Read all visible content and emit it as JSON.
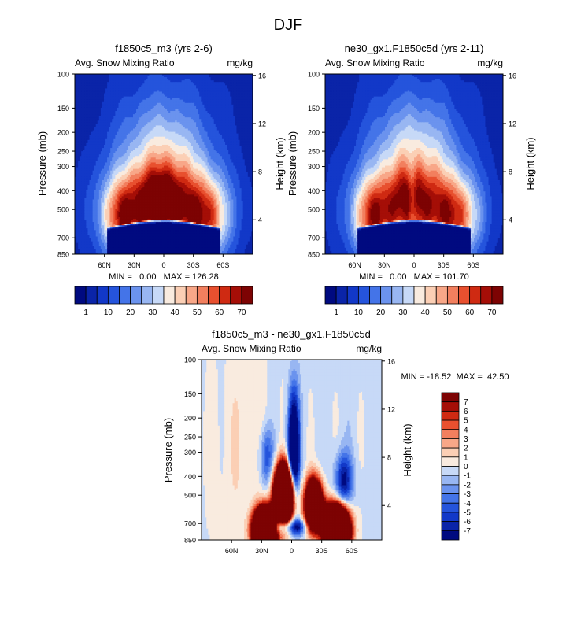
{
  "page_title": "DJF",
  "chart_data": [
    {
      "type": "heatmap",
      "title": "f1850c5_m3 (yrs 2-6)",
      "subtitle_left": "Avg. Snow Mixing Ratio",
      "subtitle_right": "mg/kg",
      "ylabel": "Pressure (mb)",
      "ylabel_right": "Height (km)",
      "xlim": [
        90,
        -90
      ],
      "x_tick_values": [
        60,
        30,
        0,
        -30,
        -60
      ],
      "x_tick_labels": [
        "60N",
        "30N",
        "0",
        "30S",
        "60S"
      ],
      "ylim": [
        850,
        100
      ],
      "y_tick_values": [
        100,
        150,
        200,
        250,
        300,
        400,
        500,
        700,
        850
      ],
      "y_tick_labels": [
        "100",
        "150",
        "200",
        "250",
        "300",
        "400",
        "500",
        "700",
        "850"
      ],
      "height_tick_values": [
        4,
        8,
        12,
        16
      ],
      "height_tick_labels": [
        "4",
        "8",
        "12",
        "16"
      ],
      "stats_text": "MIN =   0.00   MAX = 126.28",
      "colorbar": {
        "orientation": "horizontal",
        "levels": [
          1,
          5,
          10,
          15,
          20,
          25,
          30,
          35,
          40,
          45,
          50,
          55,
          60,
          65,
          70
        ],
        "label_values": [
          1,
          10,
          20,
          30,
          40,
          50,
          60,
          70
        ],
        "labels": [
          "1",
          "10",
          "20",
          "30",
          "40",
          "50",
          "60",
          "70"
        ]
      },
      "field": "snow_a"
    },
    {
      "type": "heatmap",
      "title": "ne30_gx1.F1850c5d (yrs 2-11)",
      "subtitle_left": "Avg. Snow Mixing Ratio",
      "subtitle_right": "mg/kg",
      "ylabel": "Pressure (mb)",
      "ylabel_right": "Height (km)",
      "xlim": [
        90,
        -90
      ],
      "x_tick_values": [
        60,
        30,
        0,
        -30,
        -60
      ],
      "x_tick_labels": [
        "60N",
        "30N",
        "0",
        "30S",
        "60S"
      ],
      "ylim": [
        850,
        100
      ],
      "y_tick_values": [
        100,
        150,
        200,
        250,
        300,
        400,
        500,
        700,
        850
      ],
      "y_tick_labels": [
        "100",
        "150",
        "200",
        "250",
        "300",
        "400",
        "500",
        "700",
        "850"
      ],
      "height_tick_values": [
        4,
        8,
        12,
        16
      ],
      "height_tick_labels": [
        "4",
        "8",
        "12",
        "16"
      ],
      "stats_text": "MIN =   0.00   MAX = 101.70",
      "colorbar": {
        "orientation": "horizontal",
        "levels": [
          1,
          5,
          10,
          15,
          20,
          25,
          30,
          35,
          40,
          45,
          50,
          55,
          60,
          65,
          70
        ],
        "label_values": [
          1,
          10,
          20,
          30,
          40,
          50,
          60,
          70
        ],
        "labels": [
          "1",
          "10",
          "20",
          "30",
          "40",
          "50",
          "60",
          "70"
        ]
      },
      "field": "snow_b"
    },
    {
      "type": "heatmap",
      "title": "f1850c5_m3 - ne30_gx1.F1850c5d",
      "subtitle_left": "Avg. Snow Mixing Ratio",
      "subtitle_right": "mg/kg",
      "ylabel": "Pressure (mb)",
      "ylabel_right": "Height (km)",
      "xlim": [
        90,
        -90
      ],
      "x_tick_values": [
        60,
        30,
        0,
        -30,
        -60
      ],
      "x_tick_labels": [
        "60N",
        "30N",
        "0",
        "30S",
        "60S"
      ],
      "ylim": [
        850,
        100
      ],
      "y_tick_values": [
        100,
        150,
        200,
        250,
        300,
        400,
        500,
        700,
        850
      ],
      "y_tick_labels": [
        "100",
        "150",
        "200",
        "250",
        "300",
        "400",
        "500",
        "700",
        "850"
      ],
      "height_tick_values": [
        4,
        8,
        12,
        16
      ],
      "height_tick_labels": [
        "4",
        "8",
        "12",
        "16"
      ],
      "stats_text": "MIN = -18.52  MAX =  42.50",
      "colorbar": {
        "orientation": "vertical",
        "levels": [
          -7,
          -6,
          -5,
          -4,
          -3,
          -2,
          -1,
          0,
          1,
          2,
          3,
          4,
          5,
          6,
          7
        ],
        "label_values": [
          7,
          6,
          5,
          4,
          3,
          2,
          1,
          0,
          -1,
          -2,
          -3,
          -4,
          -5,
          -6,
          -7
        ],
        "labels": [
          "7",
          "6",
          "5",
          "4",
          "3",
          "2",
          "1",
          "0",
          "-1",
          "-2",
          "-3",
          "-4",
          "-5",
          "-6",
          "-7"
        ]
      },
      "field": "diff"
    }
  ],
  "colors": {
    "palette": [
      "#000a80",
      "#0a24a8",
      "#1238c8",
      "#2554dc",
      "#4474e8",
      "#6b93ee",
      "#98b6f2",
      "#c7d9f7",
      "#f9ebdf",
      "#fbcfb5",
      "#f8a788",
      "#f27f5e",
      "#e8502f",
      "#cf2a12",
      "#a50e07",
      "#7d0303"
    ]
  }
}
